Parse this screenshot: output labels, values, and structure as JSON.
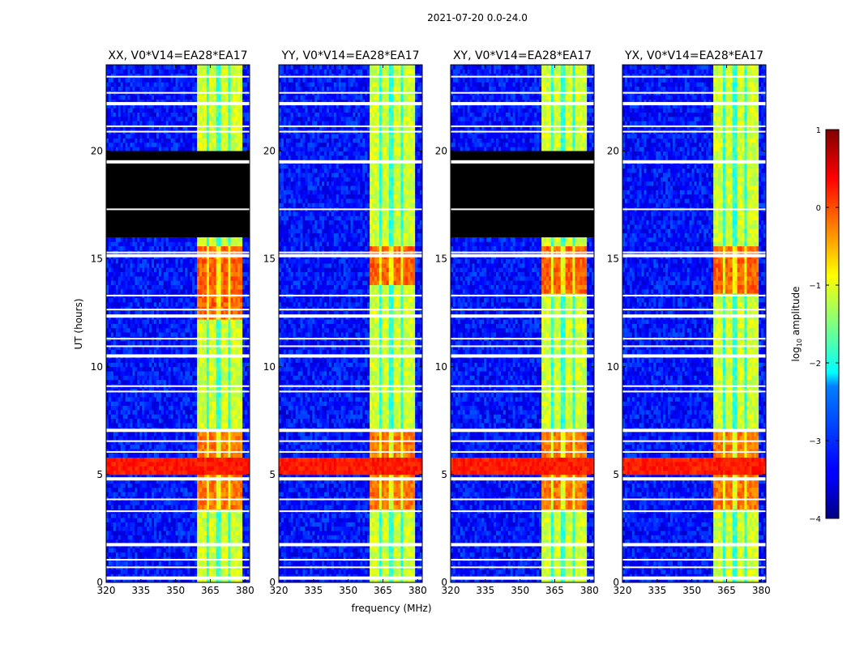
{
  "chart_data": {
    "type": "heatmap",
    "suptitle": "2021-07-20 0.0-24.0",
    "xlabel": "frequency (MHz)",
    "ylabel": "UT (hours)",
    "xlim": [
      320,
      382
    ],
    "ylim": [
      0,
      24
    ],
    "xticks": [
      320,
      335,
      350,
      365,
      380
    ],
    "yticks": [
      0,
      5,
      10,
      15,
      20
    ],
    "colormap": "jet",
    "colorbar": {
      "label_prefix": "log",
      "label_sub": "10",
      "label_suffix": " amplitude",
      "range": [
        -4,
        1
      ],
      "ticks": [
        -4,
        -3,
        -2,
        -1,
        0,
        1
      ]
    },
    "band": {
      "freq_range": [
        359.5,
        378.5
      ],
      "subband_edges": [
        364,
        368.5,
        373
      ]
    },
    "panels": [
      {
        "title": "XX, V0*V14=EA28*EA17",
        "flagged_hours": [
          16,
          20
        ],
        "strong_rfi_hours": [
          12.2,
          15.5
        ]
      },
      {
        "title": "YY, V0*V14=EA28*EA17",
        "flagged_hours": null,
        "strong_rfi_hours": [
          13.8,
          15.5
        ]
      },
      {
        "title": "XY, V0*V14=EA28*EA17",
        "flagged_hours": [
          16,
          20
        ],
        "strong_rfi_hours": [
          13.5,
          15.5
        ]
      },
      {
        "title": "YX, V0*V14=EA28*EA17",
        "flagged_hours": null,
        "strong_rfi_hours": [
          13.5,
          15.5
        ]
      }
    ],
    "gap_hours": [
      0.2,
      0.7,
      1.05,
      1.75,
      3.3,
      3.85,
      4.8,
      6.05,
      6.55,
      7.05,
      8.85,
      9.1,
      10.5,
      10.95,
      11.3,
      12.35,
      12.65,
      13.3,
      15.15,
      15.3,
      17.3,
      19.5,
      20.9,
      21.15,
      22.2,
      22.7,
      23.45
    ],
    "bright_hours": [
      5.1,
      5.8
    ]
  }
}
